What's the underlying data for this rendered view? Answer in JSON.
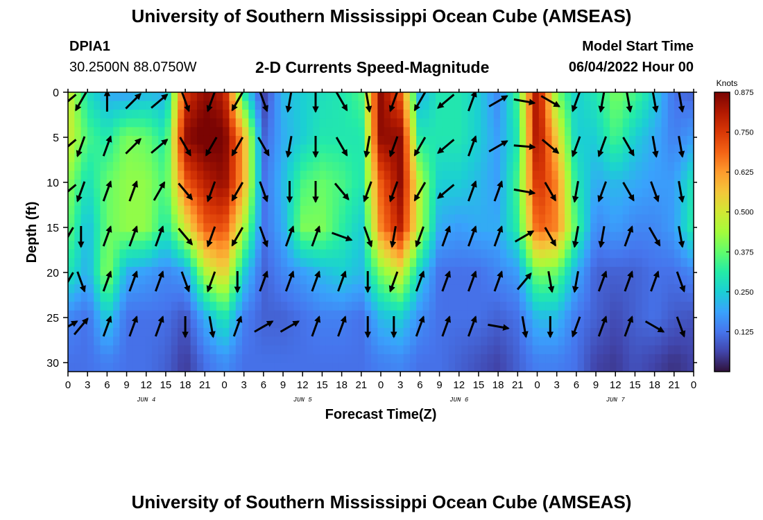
{
  "header": {
    "title": "University of Southern Mississippi Ocean Cube (AMSEAS)",
    "station": "DPIA1",
    "coords": "30.2500N  88.0750W",
    "subtitle": "2-D Currents Speed-Magnitude",
    "model_start_label": "Model Start Time",
    "model_start_value": "06/04/2022 Hour 00"
  },
  "footer": {
    "title": "University of Southern Mississippi Ocean Cube (AMSEAS)"
  },
  "chart_data": {
    "type": "heatmap",
    "xlabel": "Forecast Time(Z)",
    "ylabel": "Depth (ft)",
    "x_unit": "forecast hour",
    "xlim": [
      0,
      96
    ],
    "ylim": [
      0,
      31
    ],
    "x_tick_values": [
      0,
      3,
      6,
      9,
      12,
      15,
      18,
      21,
      24,
      27,
      30,
      33,
      36,
      39,
      42,
      45,
      48,
      51,
      54,
      57,
      60,
      63,
      66,
      69,
      72,
      75,
      78,
      81,
      84,
      87,
      90,
      93,
      96
    ],
    "x_tick_labels": [
      "0",
      "3",
      "6",
      "9",
      "12",
      "15",
      "18",
      "21",
      "0",
      "3",
      "6",
      "9",
      "12",
      "15",
      "18",
      "21",
      "0",
      "3",
      "6",
      "9",
      "12",
      "15",
      "18",
      "21",
      "0",
      "3",
      "6",
      "9",
      "12",
      "15",
      "18",
      "21",
      "0"
    ],
    "y_ticks": [
      0,
      5,
      10,
      15,
      20,
      25,
      30
    ],
    "y_tick_labels": [
      "0",
      "5",
      "10",
      "15",
      "20",
      "25",
      "30"
    ],
    "date_labels": [
      {
        "text": "JUN 4",
        "hour": 12
      },
      {
        "text": "JUN 5",
        "hour": 36
      },
      {
        "text": "JUN 6",
        "hour": 60
      },
      {
        "text": "JUN 7",
        "hour": 84
      }
    ],
    "colorbar": {
      "unit": "Knots",
      "min": 0.0,
      "max": 0.875,
      "tick_values": [
        0.125,
        0.25,
        0.375,
        0.5,
        0.625,
        0.75,
        0.875
      ],
      "tick_labels": [
        "0.125",
        "0.250",
        "0.375",
        "0.500",
        "0.625",
        "0.750",
        "0.875"
      ],
      "colors": [
        "#30123b",
        "#4145ab",
        "#4675ed",
        "#39a2fc",
        "#1bcfd4",
        "#24eca6",
        "#61fc6c",
        "#a4fc3b",
        "#d1e834",
        "#f3c63a",
        "#fe9b2d",
        "#f36315",
        "#d93806",
        "#b11901",
        "#7a0403"
      ]
    },
    "speed_grid": {
      "times": [
        0,
        3,
        6,
        9,
        12,
        15,
        18,
        21,
        24,
        27,
        30,
        33,
        36,
        39,
        42,
        45,
        48,
        51,
        54,
        57,
        60,
        63,
        66,
        69,
        72,
        75,
        78,
        81,
        84,
        87,
        90,
        93,
        96
      ],
      "depths": [
        0,
        5,
        10,
        15,
        20,
        25,
        30
      ],
      "values": [
        [
          0.5,
          0.28,
          0.2,
          0.18,
          0.22,
          0.2,
          0.75,
          0.85,
          0.8,
          0.3,
          0.05,
          0.22,
          0.25,
          0.28,
          0.3,
          0.35,
          0.85,
          0.7,
          0.2,
          0.3,
          0.3,
          0.25,
          0.15,
          0.35,
          0.85,
          0.4,
          0.25,
          0.3,
          0.4,
          0.35,
          0.25,
          0.12,
          0.1
        ],
        [
          0.5,
          0.35,
          0.3,
          0.4,
          0.38,
          0.3,
          0.85,
          0.9,
          0.88,
          0.6,
          0.1,
          0.2,
          0.25,
          0.3,
          0.3,
          0.3,
          0.85,
          0.85,
          0.3,
          0.3,
          0.3,
          0.25,
          0.18,
          0.3,
          0.85,
          0.55,
          0.25,
          0.25,
          0.35,
          0.25,
          0.2,
          0.14,
          0.18
        ],
        [
          0.42,
          0.28,
          0.38,
          0.42,
          0.42,
          0.35,
          0.7,
          0.8,
          0.85,
          0.6,
          0.12,
          0.22,
          0.35,
          0.38,
          0.35,
          0.3,
          0.7,
          0.85,
          0.45,
          0.25,
          0.25,
          0.22,
          0.18,
          0.35,
          0.78,
          0.65,
          0.3,
          0.2,
          0.22,
          0.2,
          0.18,
          0.18,
          0.3
        ],
        [
          0.38,
          0.22,
          0.38,
          0.42,
          0.42,
          0.3,
          0.5,
          0.7,
          0.72,
          0.45,
          0.12,
          0.2,
          0.4,
          0.4,
          0.32,
          0.25,
          0.65,
          0.8,
          0.45,
          0.2,
          0.18,
          0.2,
          0.2,
          0.32,
          0.7,
          0.65,
          0.35,
          0.15,
          0.18,
          0.15,
          0.15,
          0.18,
          0.32
        ],
        [
          0.3,
          0.2,
          0.42,
          0.2,
          0.18,
          0.15,
          0.18,
          0.45,
          0.55,
          0.25,
          0.1,
          0.15,
          0.18,
          0.22,
          0.25,
          0.22,
          0.4,
          0.5,
          0.25,
          0.12,
          0.12,
          0.12,
          0.15,
          0.18,
          0.4,
          0.38,
          0.2,
          0.1,
          0.1,
          0.1,
          0.12,
          0.12,
          0.15
        ],
        [
          0.15,
          0.12,
          0.25,
          0.12,
          0.12,
          0.12,
          0.08,
          0.2,
          0.3,
          0.14,
          0.1,
          0.1,
          0.12,
          0.14,
          0.14,
          0.12,
          0.22,
          0.25,
          0.16,
          0.12,
          0.12,
          0.12,
          0.1,
          0.12,
          0.22,
          0.22,
          0.13,
          0.1,
          0.07,
          0.1,
          0.12,
          0.09,
          0.08
        ],
        [
          0.12,
          0.12,
          0.14,
          0.12,
          0.12,
          0.1,
          0.05,
          0.12,
          0.16,
          0.12,
          0.12,
          0.12,
          0.12,
          0.12,
          0.12,
          0.12,
          0.14,
          0.15,
          0.12,
          0.12,
          0.1,
          0.08,
          0.06,
          0.1,
          0.14,
          0.14,
          0.12,
          0.06,
          0.05,
          0.08,
          0.06,
          0.04,
          0.06
        ]
      ]
    },
    "vectors": {
      "times": [
        0,
        2,
        6,
        10,
        14,
        18,
        22,
        26,
        30,
        34,
        38,
        42,
        46,
        50,
        54,
        58,
        62,
        66,
        70,
        74,
        78,
        82,
        86,
        90,
        94
      ],
      "depths": [
        1,
        6,
        11,
        16,
        21,
        26
      ],
      "directions_deg": [
        [
          230,
          210,
          0,
          45,
          50,
          160,
          200,
          210,
          160,
          190,
          180,
          150,
          170,
          200,
          210,
          230,
          20,
          60,
          100,
          120,
          200,
          190,
          170,
          170,
          170
        ],
        [
          230,
          200,
          20,
          45,
          50,
          150,
          210,
          210,
          150,
          190,
          180,
          150,
          190,
          200,
          210,
          230,
          20,
          60,
          95,
          130,
          200,
          200,
          150,
          170,
          170
        ],
        [
          230,
          200,
          20,
          20,
          30,
          140,
          200,
          210,
          160,
          180,
          180,
          140,
          200,
          200,
          210,
          230,
          20,
          20,
          100,
          150,
          190,
          200,
          150,
          160,
          170
        ],
        [
          210,
          180,
          20,
          20,
          20,
          140,
          200,
          210,
          160,
          20,
          20,
          110,
          160,
          190,
          200,
          20,
          20,
          20,
          60,
          150,
          190,
          190,
          20,
          150,
          170
        ],
        [
          210,
          160,
          20,
          20,
          20,
          160,
          200,
          180,
          20,
          20,
          20,
          20,
          180,
          200,
          20,
          20,
          20,
          20,
          40,
          170,
          190,
          20,
          20,
          20,
          160
        ],
        [
          60,
          40,
          20,
          20,
          20,
          180,
          170,
          20,
          60,
          60,
          20,
          20,
          180,
          180,
          20,
          20,
          20,
          100,
          170,
          180,
          200,
          20,
          20,
          120,
          160
        ]
      ]
    }
  }
}
